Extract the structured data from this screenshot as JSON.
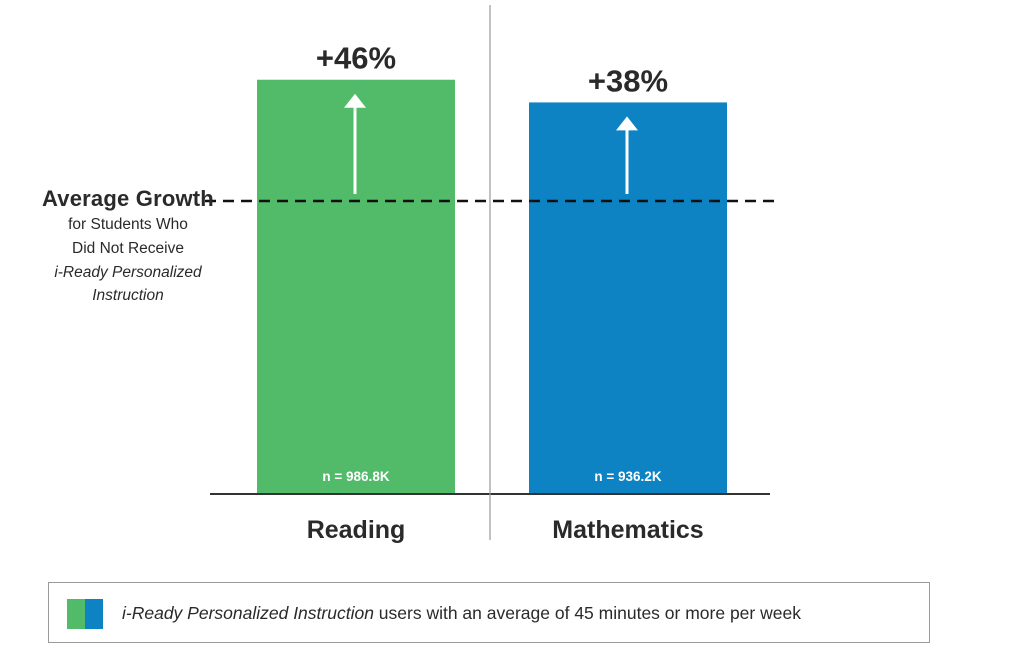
{
  "chart_data": {
    "type": "bar",
    "categories": [
      "Reading",
      "Mathematics"
    ],
    "values": [
      46,
      38
    ],
    "value_labels": [
      "+46%",
      "+38%"
    ],
    "n_labels": [
      "n = 986.8K",
      "n = 936.2K"
    ],
    "colors": [
      "#51bb6a",
      "#0d83c3"
    ],
    "baseline": {
      "title": "Average Growth",
      "subtitle_lines": [
        "for Students Who",
        "Did Not Receive",
        "i-Ready Personalized",
        "Instruction"
      ]
    },
    "legend": {
      "label_italic": "i-Ready Personalized Instruction",
      "label_rest": " users with an average of 45 minutes or more per week",
      "swatch_colors": [
        "#51bb6a",
        "#0d83c3"
      ]
    },
    "ylim": [
      -100,
      60
    ],
    "grid": false,
    "xlabel": "",
    "ylabel": ""
  }
}
